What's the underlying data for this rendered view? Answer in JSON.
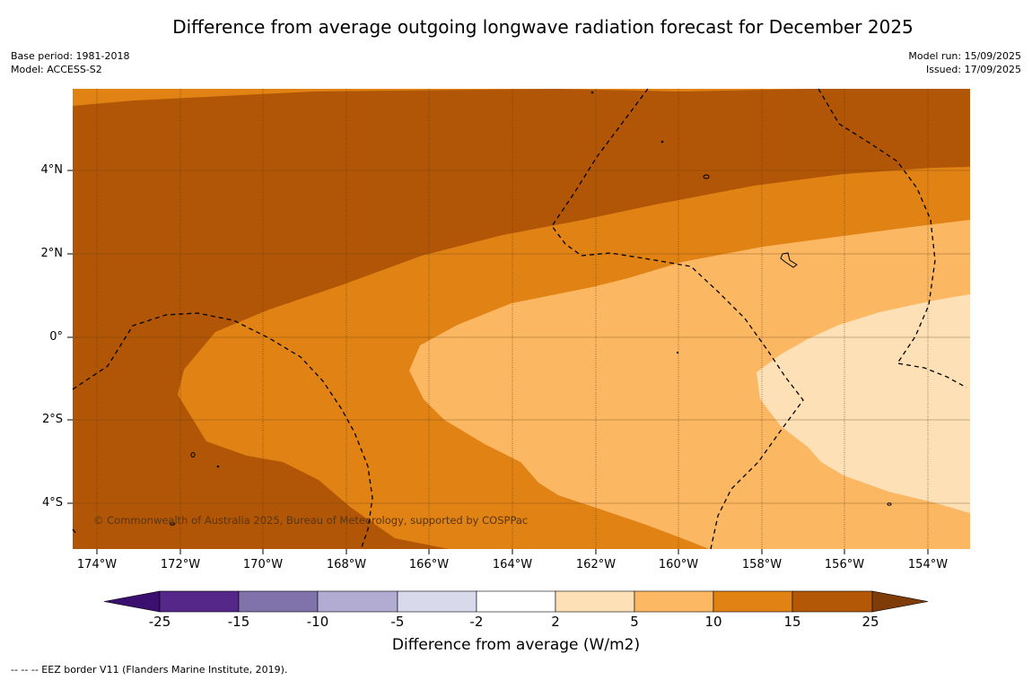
{
  "title": "Difference from average outgoing longwave radiation forecast for December 2025",
  "meta_left": {
    "base_period": "Base period: 1981-2018",
    "model": "Model: ACCESS-S2"
  },
  "meta_right": {
    "model_run": "Model run: 15/09/2025",
    "issued": "Issued: 17/09/2025"
  },
  "map": {
    "lat_labels": [
      "4°N",
      "2°N",
      "0°",
      "2°S",
      "4°S"
    ],
    "lon_labels": [
      "174°W",
      "172°W",
      "170°W",
      "168°W",
      "166°W",
      "164°W",
      "162°W",
      "160°W",
      "158°W",
      "156°W",
      "154°W"
    ],
    "copyright": "© Commonwealth of Australia 2025, Bureau of Meteorology, supported by COSPPac",
    "colors": {
      "band_15_25": "#b05606",
      "band_10_15": "#e08214",
      "band_5_10": "#fbb761",
      "band_2_5": "#fee0b6"
    }
  },
  "colorbar": {
    "title": "Difference from average (W/m2)",
    "ticks": [
      "-25",
      "-15",
      "-10",
      "-5",
      "-2",
      "2",
      "5",
      "10",
      "15",
      "25"
    ],
    "colors": [
      "#3b0f70",
      "#542788",
      "#8073ac",
      "#b2abd2",
      "#d8daeb",
      "#ffffff",
      "#fee0b6",
      "#fdb863",
      "#e08214",
      "#b35806",
      "#7f3b08"
    ]
  },
  "footnote": "--  --  -- EEZ border V11 (Flanders Marine Institute, 2019)."
}
